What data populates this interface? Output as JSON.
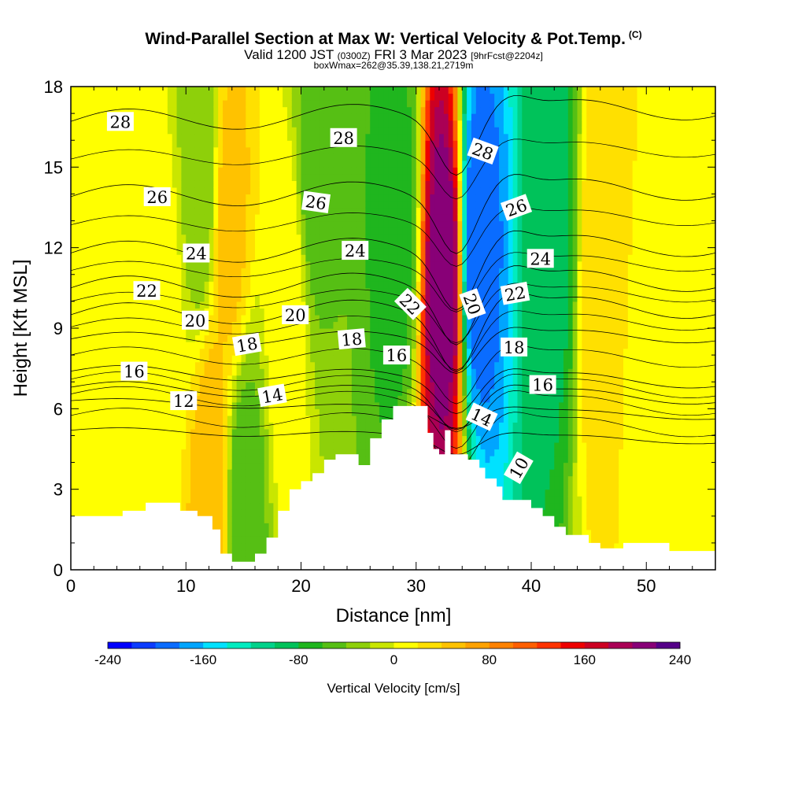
{
  "header": {
    "title_main": "Wind-Parallel Section at Max W: Vertical Velocity & Pot.Temp.",
    "title_mark": "(C)",
    "valid_prefix": "Valid 1200 JST",
    "valid_utc": "(0300Z)",
    "valid_date": "FRI 3 Mar 2023",
    "forecast": "[9hrFcst@2204z]",
    "box_info": "boxWmax=262@35.39,138.21,2719m"
  },
  "chart_data": {
    "type": "heatmap",
    "xlabel": "Distance [nm]",
    "ylabel": "Height [Kft MSL]",
    "xlim": [
      0,
      56
    ],
    "ylim": [
      0,
      18
    ],
    "x_ticks": [
      0,
      10,
      20,
      30,
      40,
      50
    ],
    "y_ticks": [
      0,
      3,
      6,
      9,
      12,
      15,
      18
    ],
    "colorbar": {
      "label": "Vertical Velocity [cm/s]",
      "range": [
        -240,
        240
      ],
      "step": 20,
      "tick_labels": [
        "-240",
        "-160",
        "-80",
        "0",
        "80",
        "160",
        "240"
      ],
      "colors": [
        "#0000ff",
        "#0c3cff",
        "#0a6cff",
        "#00a5ff",
        "#00e2ff",
        "#00ecc0",
        "#00d28a",
        "#00c25a",
        "#1fb61e",
        "#56bf14",
        "#8ed00a",
        "#c9e600",
        "#ffff00",
        "#ffe000",
        "#ffc200",
        "#ffa200",
        "#ff8200",
        "#ff5f00",
        "#ff3300",
        "#ee0000",
        "#cc0022",
        "#aa0055",
        "#880077",
        "#550088"
      ]
    },
    "field_centers": [
      {
        "x": 0,
        "w": 4,
        "y": 9,
        "v": 10
      },
      {
        "x": 8,
        "w": 10,
        "y": 9,
        "v": 10
      },
      {
        "x": 11.3,
        "w": -40,
        "y": 15,
        "v": -40
      },
      {
        "x": 12.2,
        "w": 60,
        "y": 3,
        "v": 60
      },
      {
        "x": 13.8,
        "w": 50,
        "y": 13,
        "v": 50
      },
      {
        "x": 15,
        "w": -60,
        "y": 2,
        "v": -60
      },
      {
        "x": 19,
        "w": 20,
        "y": 10,
        "v": 20
      },
      {
        "x": 21,
        "w": -50,
        "y": 15,
        "v": -50
      },
      {
        "x": 28.4,
        "w": -70,
        "y": 13,
        "v": -70
      },
      {
        "x": 32.5,
        "w": 220,
        "y": 11,
        "v": 220
      },
      {
        "x": 35.3,
        "w": -200,
        "y": 12,
        "v": -200
      },
      {
        "x": 42,
        "w": -90,
        "y": 13,
        "v": -90
      },
      {
        "x": 46,
        "w": 40,
        "y": 11,
        "v": 40
      },
      {
        "x": 50,
        "w": 10,
        "y": 5,
        "v": 10
      }
    ],
    "theta_contours": [
      {
        "theta": 28,
        "y_left": 16.7,
        "y_right": 17.2
      },
      {
        "theta": 26,
        "y_left": 13.9,
        "y_right": 14.2
      },
      {
        "theta": 24,
        "y_left": 11.8,
        "y_right": 12.1
      },
      {
        "theta": 22,
        "y_left": 10.5,
        "y_right": 10.8
      },
      {
        "theta": 20,
        "y_left": 9.5,
        "y_right": 9.8
      },
      {
        "theta": 18,
        "y_left": 8.6,
        "y_right": 8.7
      },
      {
        "theta": 16,
        "y_left": 7.4,
        "y_right": 7.0
      },
      {
        "theta": 14,
        "y_left": 6.8,
        "y_right": 6.4
      },
      {
        "theta": 12,
        "y_left": 6.3,
        "y_right": 5.7
      },
      {
        "theta": 10,
        "y_left": 5.2,
        "y_right": 4.8
      }
    ],
    "contour_labels": [
      {
        "text": "28",
        "x": 4.3,
        "y": 16.7,
        "rot": 0
      },
      {
        "text": "28",
        "x": 23.7,
        "y": 16.1,
        "rot": 0
      },
      {
        "text": "28",
        "x": 35.8,
        "y": 15.6,
        "rot": 20
      },
      {
        "text": "26",
        "x": 7.5,
        "y": 13.9,
        "rot": 0
      },
      {
        "text": "26",
        "x": 21.3,
        "y": 13.7,
        "rot": 8
      },
      {
        "text": "26",
        "x": 38.7,
        "y": 13.5,
        "rot": -20
      },
      {
        "text": "24",
        "x": 10.9,
        "y": 11.8,
        "rot": 0
      },
      {
        "text": "24",
        "x": 24.7,
        "y": 11.9,
        "rot": 0
      },
      {
        "text": "24",
        "x": 40.8,
        "y": 11.6,
        "rot": 0
      },
      {
        "text": "22",
        "x": 6.6,
        "y": 10.4,
        "rot": 0
      },
      {
        "text": "22",
        "x": 29.5,
        "y": 9.9,
        "rot": 45
      },
      {
        "text": "22",
        "x": 38.6,
        "y": 10.3,
        "rot": -10
      },
      {
        "text": "20",
        "x": 10.8,
        "y": 9.3,
        "rot": 0
      },
      {
        "text": "20",
        "x": 19.5,
        "y": 9.5,
        "rot": 0
      },
      {
        "text": "20",
        "x": 34.9,
        "y": 9.9,
        "rot": 70
      },
      {
        "text": "18",
        "x": 15.3,
        "y": 8.4,
        "rot": -10
      },
      {
        "text": "18",
        "x": 24.4,
        "y": 8.6,
        "rot": -5
      },
      {
        "text": "18",
        "x": 38.5,
        "y": 8.3,
        "rot": 0
      },
      {
        "text": "16",
        "x": 5.5,
        "y": 7.4,
        "rot": 0
      },
      {
        "text": "16",
        "x": 28.3,
        "y": 8.0,
        "rot": 0
      },
      {
        "text": "16",
        "x": 41,
        "y": 6.9,
        "rot": 0
      },
      {
        "text": "14",
        "x": 17.5,
        "y": 6.5,
        "rot": -10
      },
      {
        "text": "14",
        "x": 35.7,
        "y": 5.7,
        "rot": 25
      },
      {
        "text": "12",
        "x": 9.8,
        "y": 6.3,
        "rot": 0
      },
      {
        "text": "10",
        "x": 38.9,
        "y": 3.8,
        "rot": -60
      }
    ],
    "terrain": [
      [
        0,
        2
      ],
      [
        4.5,
        2
      ],
      [
        4.5,
        2.2
      ],
      [
        6.5,
        2.2
      ],
      [
        6.5,
        2.5
      ],
      [
        9.5,
        2.5
      ],
      [
        9.5,
        2.2
      ],
      [
        11,
        2.2
      ],
      [
        11,
        2
      ],
      [
        12.3,
        2
      ],
      [
        12.3,
        1.5
      ],
      [
        13,
        1.5
      ],
      [
        13,
        0.6
      ],
      [
        14,
        0.6
      ],
      [
        14,
        0.3
      ],
      [
        16,
        0.3
      ],
      [
        16,
        0.6
      ],
      [
        17,
        0.6
      ],
      [
        17,
        1.2
      ],
      [
        18,
        1.2
      ],
      [
        18,
        2.2
      ],
      [
        19,
        2.2
      ],
      [
        19,
        3
      ],
      [
        20,
        3
      ],
      [
        20,
        3.3
      ],
      [
        21,
        3.3
      ],
      [
        21,
        3.6
      ],
      [
        22,
        3.6
      ],
      [
        22,
        4.1
      ],
      [
        23,
        4.1
      ],
      [
        23,
        4.3
      ],
      [
        25,
        4.3
      ],
      [
        25,
        3.9
      ],
      [
        26,
        3.9
      ],
      [
        26,
        4.9
      ],
      [
        27,
        4.9
      ],
      [
        27,
        5.6
      ],
      [
        28,
        5.6
      ],
      [
        28,
        6.1
      ],
      [
        31,
        6.1
      ],
      [
        31,
        5.1
      ],
      [
        31.5,
        5.1
      ],
      [
        31.5,
        4.5
      ],
      [
        32,
        4.5
      ],
      [
        32,
        4.3
      ],
      [
        32.5,
        4.3
      ],
      [
        32.5,
        5.2
      ],
      [
        33,
        5.2
      ],
      [
        33,
        4.3
      ],
      [
        34.5,
        4.3
      ],
      [
        34.5,
        4.1
      ],
      [
        35.5,
        4.1
      ],
      [
        35.5,
        3.8
      ],
      [
        36,
        3.8
      ],
      [
        36,
        3.4
      ],
      [
        37,
        3.4
      ],
      [
        37,
        3.1
      ],
      [
        37.5,
        3.1
      ],
      [
        37.5,
        2.6
      ],
      [
        40,
        2.6
      ],
      [
        40,
        2.3
      ],
      [
        41,
        2.3
      ],
      [
        41,
        2
      ],
      [
        42,
        2
      ],
      [
        42,
        1.6
      ],
      [
        43,
        1.6
      ],
      [
        43,
        1.3
      ],
      [
        45,
        1.3
      ],
      [
        45,
        1
      ],
      [
        46,
        1
      ],
      [
        46,
        0.8
      ],
      [
        48,
        0.8
      ],
      [
        48,
        1
      ],
      [
        52,
        1
      ],
      [
        52,
        0.7
      ],
      [
        56,
        0.7
      ],
      [
        56,
        0
      ],
      [
        0,
        0
      ]
    ]
  }
}
